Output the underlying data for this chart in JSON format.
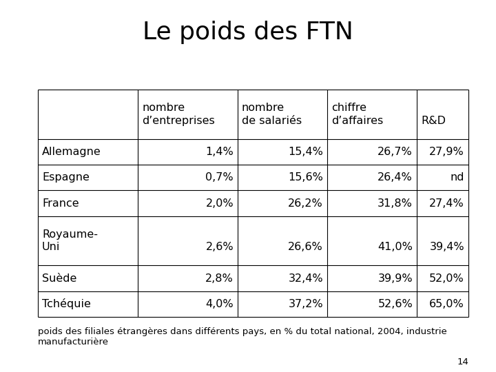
{
  "title": "Le poids des FTN",
  "col_headers": [
    [
      "nombre",
      "d’entreprises"
    ],
    [
      "nombre",
      "de salariés"
    ],
    [
      "chiffre",
      "d’affaires"
    ],
    [
      "R&D",
      ""
    ]
  ],
  "rows": [
    {
      "country": "Allemagne",
      "country2": "",
      "values": [
        "1,4%",
        "15,4%",
        "26,7%",
        "27,9%"
      ]
    },
    {
      "country": "Espagne",
      "country2": "",
      "values": [
        "0,7%",
        "15,6%",
        "26,4%",
        "nd"
      ]
    },
    {
      "country": "France",
      "country2": "",
      "values": [
        "2,0%",
        "26,2%",
        "31,8%",
        "27,4%"
      ]
    },
    {
      "country": "Royaume-",
      "country2": "Uni",
      "values": [
        "2,6%",
        "26,6%",
        "41,0%",
        "39,4%"
      ]
    },
    {
      "country": "Suède",
      "country2": "",
      "values": [
        "2,8%",
        "32,4%",
        "39,9%",
        "52,0%"
      ]
    },
    {
      "country": "Tchéquie",
      "country2": "",
      "values": [
        "4,0%",
        "37,2%",
        "52,6%",
        "65,0%"
      ]
    }
  ],
  "footnote1": "poids des filiales étrangères dans différents pays, en % du total national, 2004, industrie",
  "footnote2": "manufacturière",
  "page_num": "14",
  "bg_color": "#ffffff",
  "text_color": "#000000",
  "title_fontsize": 26,
  "body_fontsize": 11.5,
  "footnote_fontsize": 9.5,
  "pagenum_fontsize": 9.5
}
